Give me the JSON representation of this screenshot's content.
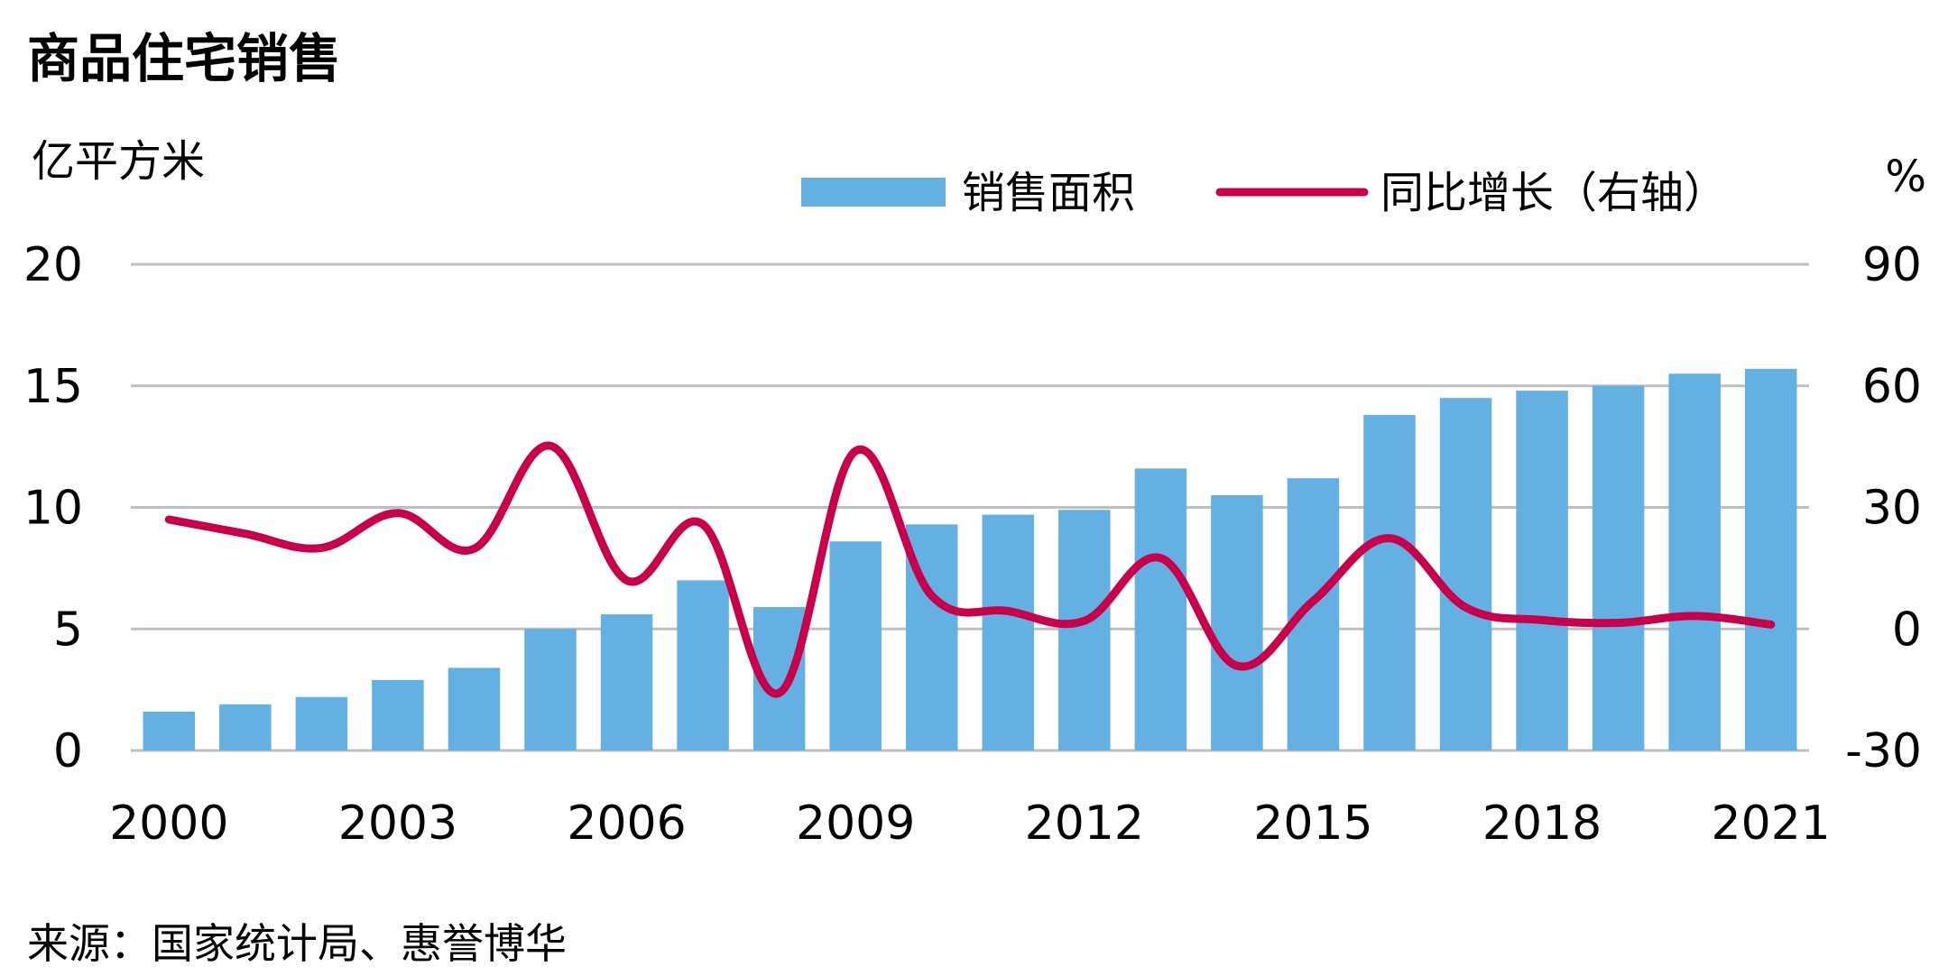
{
  "chart_data": {
    "type": "bar+line",
    "title": "商品住宅销售",
    "left_unit": "亿平方米",
    "right_unit": "%",
    "source": "来源：国家统计局、惠誉博华",
    "x": [
      2000,
      2001,
      2002,
      2003,
      2004,
      2005,
      2006,
      2007,
      2008,
      2009,
      2010,
      2011,
      2012,
      2013,
      2014,
      2015,
      2016,
      2017,
      2018,
      2019,
      2020,
      2021
    ],
    "x_tick_labels": [
      "2000",
      "2003",
      "2006",
      "2009",
      "2012",
      "2015",
      "2018",
      "2021"
    ],
    "left_axis": {
      "ylim": [
        0,
        20
      ],
      "ticks": [
        "0",
        "5",
        "10",
        "15",
        "20"
      ]
    },
    "right_axis": {
      "ylim": [
        -30,
        90
      ],
      "ticks": [
        "-30",
        "0",
        "30",
        "60",
        "90"
      ]
    },
    "grid": true,
    "legend_position": "top-right",
    "series": [
      {
        "name": "销售面积",
        "type": "bar",
        "axis": "left",
        "color": "#64B0E2",
        "values": [
          1.6,
          1.9,
          2.2,
          2.9,
          3.4,
          5.0,
          5.6,
          7.0,
          5.9,
          8.6,
          9.3,
          9.7,
          9.9,
          11.6,
          10.5,
          11.2,
          13.8,
          14.5,
          14.8,
          15.0,
          15.5,
          15.7
        ]
      },
      {
        "name": "同比增长（右轴）",
        "type": "line",
        "axis": "right",
        "color": "#C8004C",
        "values": [
          27.0,
          23.5,
          20.0,
          28.6,
          19.8,
          45.2,
          12.0,
          25.8,
          -15.8,
          43.9,
          8.2,
          4.4,
          2.0,
          17.5,
          -9.1,
          6.9,
          22.4,
          5.3,
          2.2,
          1.5,
          3.2,
          1.1
        ]
      }
    ]
  }
}
